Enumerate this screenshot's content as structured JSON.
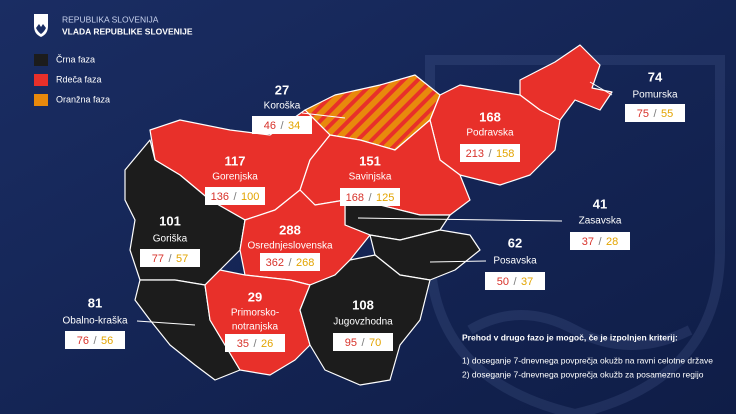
{
  "header": {
    "line1": "REPUBLIKA SLOVENIJA",
    "line2": "VLADA REPUBLIKE SLOVENIJE"
  },
  "legend": [
    {
      "label": "Črna faza",
      "color": "#1c1c1c"
    },
    {
      "label": "Rdeča faza",
      "color": "#e8302a"
    },
    {
      "label": "Oranžna faza",
      "color": "#e8890c"
    }
  ],
  "separator": "/",
  "regions": [
    {
      "name": [
        "Koroška"
      ],
      "value": 27,
      "box": [
        46,
        34
      ],
      "color": "#e8890c",
      "hatched": true
    },
    {
      "name": [
        "Pomurska"
      ],
      "value": 74,
      "box": [
        75,
        55
      ],
      "color": "#e8302a"
    },
    {
      "name": [
        "Podravska"
      ],
      "value": 168,
      "box": [
        213,
        158
      ],
      "color": "#e8302a"
    },
    {
      "name": [
        "Gorenjska"
      ],
      "value": 117,
      "box": [
        136,
        100
      ],
      "color": "#e8302a"
    },
    {
      "name": [
        "Savinjska"
      ],
      "value": 151,
      "box": [
        168,
        125
      ],
      "color": "#e8302a"
    },
    {
      "name": [
        "Zasavska"
      ],
      "value": 41,
      "box": [
        37,
        28
      ],
      "color": "#1c1c1c"
    },
    {
      "name": [
        "Goriška"
      ],
      "value": 101,
      "box": [
        77,
        57
      ],
      "color": "#1c1c1c"
    },
    {
      "name": [
        "Osrednjeslovenska"
      ],
      "value": 288,
      "box": [
        362,
        268
      ],
      "color": "#e8302a"
    },
    {
      "name": [
        "Posavska"
      ],
      "value": 62,
      "box": [
        50,
        37
      ],
      "color": "#1c1c1c"
    },
    {
      "name": [
        "Obalno-kraška"
      ],
      "value": 81,
      "box": [
        76,
        56
      ],
      "color": "#1c1c1c"
    },
    {
      "name": [
        "Primorsko-",
        "notranjska"
      ],
      "value": 29,
      "box": [
        35,
        26
      ],
      "color": "#e8302a"
    },
    {
      "name": [
        "Jugovzhodna"
      ],
      "value": 108,
      "box": [
        95,
        70
      ],
      "color": "#1c1c1c"
    }
  ],
  "criteria": {
    "heading": "Prehod v drugo fazo je mogoč, če je izpolnjen kriterij:",
    "items": [
      "1) doseganje 7-dnevnega povprečja okužb na ravni celotne države",
      "2) doseganje 7-dnevnega povprečja okužb za posamezno regijo"
    ]
  }
}
